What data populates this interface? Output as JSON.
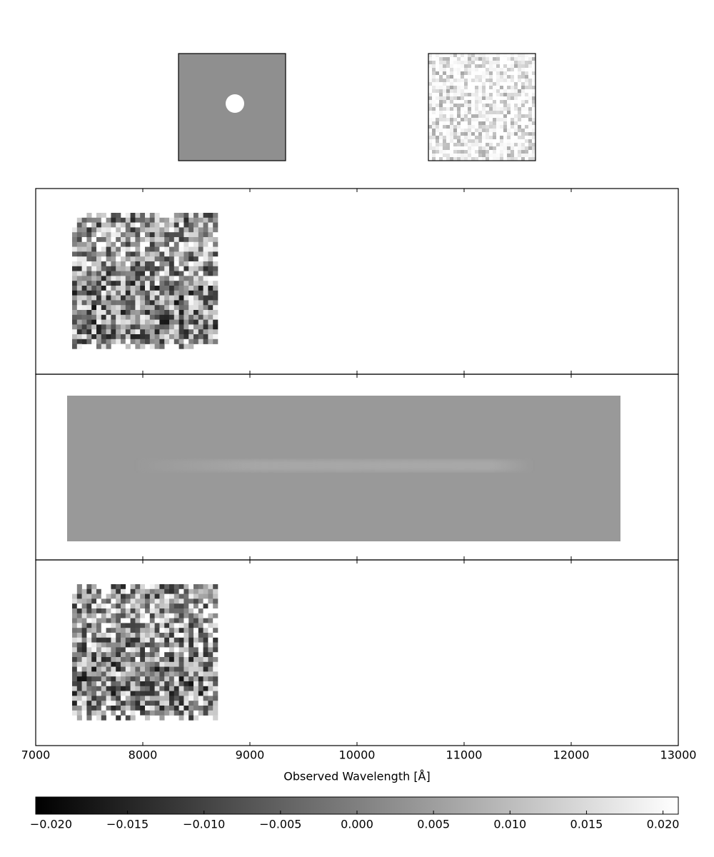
{
  "chart_data": {
    "type": "spectrum-2d",
    "xlabel": "Observed Wavelength [Å]",
    "xlim": [
      7000,
      13000
    ],
    "xticks": [
      7000,
      8000,
      9000,
      10000,
      11000,
      12000,
      13000
    ],
    "colormap": "gray",
    "clim": [
      -0.021,
      0.021
    ],
    "cticks": [
      {
        "value": -0.02,
        "label": "−0.020"
      },
      {
        "value": -0.015,
        "label": "−0.015"
      },
      {
        "value": -0.01,
        "label": "−0.010"
      },
      {
        "value": -0.005,
        "label": "−0.005"
      },
      {
        "value": 0,
        "label": "0.000"
      },
      {
        "value": 0.005,
        "label": "0.005"
      },
      {
        "value": 0.01,
        "label": "0.010"
      },
      {
        "value": 0.015,
        "label": "0.015"
      },
      {
        "value": 0.02,
        "label": "0.020"
      }
    ]
  }
}
